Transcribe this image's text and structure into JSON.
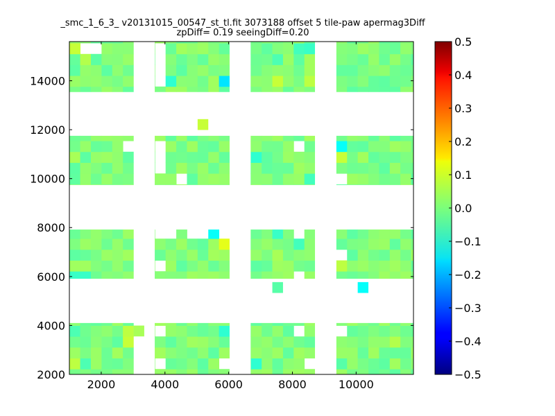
{
  "chart_data": {
    "type": "heatmap",
    "title_line1": "_smc_1_6_3_ v20131015_00547_st_tl.fit 3073188 offset 5 tile-paw apermag3Diff",
    "title_line2": "zpDiff= 0.19 seeingDiff=0.20",
    "xlabel": "",
    "ylabel": "",
    "xlim": [
      1000,
      11800
    ],
    "ylim": [
      2000,
      15600
    ],
    "x_ticks": [
      2000,
      4000,
      6000,
      8000,
      10000
    ],
    "x_tick_labels": [
      "2000",
      "4000",
      "6000",
      "8000",
      "10000"
    ],
    "y_ticks": [
      2000,
      4000,
      6000,
      8000,
      10000,
      12000,
      14000
    ],
    "y_tick_labels": [
      "2000",
      "4000",
      "6000",
      "8000",
      "10000",
      "12000",
      "14000"
    ],
    "colorbar": {
      "colormap": "jet",
      "range": [
        -0.5,
        0.5
      ],
      "ticks": [
        0.5,
        0.4,
        0.3,
        0.2,
        0.1,
        0.0,
        -0.1,
        -0.2,
        -0.3,
        -0.4,
        -0.5
      ],
      "tick_labels": [
        "0.5",
        "0.4",
        "0.3",
        "0.2",
        "0.1",
        "0.0",
        "−0.1",
        "−0.2",
        "−0.3",
        "−0.4",
        "−0.5"
      ]
    },
    "grid": false,
    "cell_size": [
      335,
      444
    ],
    "tiles": [
      {
        "x": [
          1000,
          3010
        ],
        "y": [
          2000,
          4100
        ]
      },
      {
        "x": [
          3680,
          6020
        ],
        "y": [
          2000,
          4100
        ]
      },
      {
        "x": [
          6690,
          8700
        ],
        "y": [
          2000,
          4100
        ]
      },
      {
        "x": [
          9380,
          11800
        ],
        "y": [
          2000,
          4100
        ]
      },
      {
        "x": [
          1000,
          3010
        ],
        "y": [
          5920,
          7920
        ]
      },
      {
        "x": [
          3680,
          6020
        ],
        "y": [
          5920,
          7920
        ]
      },
      {
        "x": [
          6690,
          8700
        ],
        "y": [
          5920,
          7920
        ]
      },
      {
        "x": [
          9380,
          11800
        ],
        "y": [
          5920,
          7920
        ]
      },
      {
        "x": [
          1000,
          3010
        ],
        "y": [
          9750,
          11750
        ]
      },
      {
        "x": [
          3680,
          6020
        ],
        "y": [
          9750,
          11750
        ]
      },
      {
        "x": [
          6690,
          8700
        ],
        "y": [
          9750,
          11750
        ]
      },
      {
        "x": [
          9380,
          11800
        ],
        "y": [
          9750,
          11750
        ]
      },
      {
        "x": [
          1000,
          3010
        ],
        "y": [
          13550,
          15600
        ]
      },
      {
        "x": [
          3680,
          6020
        ],
        "y": [
          13550,
          15600
        ]
      },
      {
        "x": [
          6690,
          8700
        ],
        "y": [
          13550,
          15600
        ]
      },
      {
        "x": [
          9380,
          11800
        ],
        "y": [
          13550,
          15600
        ]
      }
    ],
    "extra_cells": [
      {
        "x": 3180,
        "y": 3650,
        "value": 0.04
      },
      {
        "x": 5180,
        "y": 12000,
        "value": 0.07
      },
      {
        "x": 7680,
        "y": 5700,
        "value": -0.04
      },
      {
        "x": 10250,
        "y": 5700,
        "value": -0.12
      }
    ],
    "missing_cells": [
      {
        "x": 1340,
        "y": 15370
      },
      {
        "x": 1680,
        "y": 15370
      },
      {
        "x": 3850,
        "y": 15370
      },
      {
        "x": 3850,
        "y": 14930
      },
      {
        "x": 3850,
        "y": 14490
      },
      {
        "x": 3850,
        "y": 14050
      },
      {
        "x": 2680,
        "y": 11530
      },
      {
        "x": 3850,
        "y": 11530
      },
      {
        "x": 3850,
        "y": 11090
      },
      {
        "x": 3850,
        "y": 10650
      },
      {
        "x": 4520,
        "y": 9970
      },
      {
        "x": 8350,
        "y": 11530
      },
      {
        "x": 9550,
        "y": 10210
      },
      {
        "x": 3850,
        "y": 7700
      },
      {
        "x": 4200,
        "y": 7700
      },
      {
        "x": 5850,
        "y": 7700
      },
      {
        "x": 4850,
        "y": 7700
      },
      {
        "x": 5200,
        "y": 7700
      },
      {
        "x": 8350,
        "y": 7700
      },
      {
        "x": 9550,
        "y": 6820
      },
      {
        "x": 3850,
        "y": 6380
      },
      {
        "x": 8350,
        "y": 6140
      },
      {
        "x": 3850,
        "y": 3650
      },
      {
        "x": 3850,
        "y": 2260
      },
      {
        "x": 5850,
        "y": 2260
      },
      {
        "x": 8350,
        "y": 3880
      },
      {
        "x": 8700,
        "y": 2260
      },
      {
        "x": 9550,
        "y": 3880
      }
    ],
    "special_cells": [
      {
        "x": 1180,
        "y": 15140,
        "value": 0.07
      },
      {
        "x": 1520,
        "y": 14930,
        "value": 0.05
      },
      {
        "x": 4200,
        "y": 13800,
        "value": -0.08
      },
      {
        "x": 5850,
        "y": 13800,
        "value": -0.15
      },
      {
        "x": 7680,
        "y": 13800,
        "value": 0.07
      },
      {
        "x": 8680,
        "y": 13800,
        "value": 0.06
      },
      {
        "x": 8060,
        "y": 15140,
        "value": -0.06
      },
      {
        "x": 7380,
        "y": 14930,
        "value": -0.05
      },
      {
        "x": 8700,
        "y": 15140,
        "value": -0.07
      },
      {
        "x": 6850,
        "y": 11090,
        "value": -0.08
      },
      {
        "x": 9680,
        "y": 11530,
        "value": -0.12
      },
      {
        "x": 9680,
        "y": 10900,
        "value": 0.07
      },
      {
        "x": 8700,
        "y": 9970,
        "value": -0.06
      },
      {
        "x": 1180,
        "y": 10900,
        "value": 0.04
      },
      {
        "x": 4520,
        "y": 9970,
        "value": 0.06
      },
      {
        "x": 4350,
        "y": 7700,
        "value": 0.07
      },
      {
        "x": 5680,
        "y": 7700,
        "value": -0.12
      },
      {
        "x": 5850,
        "y": 7260,
        "value": 0.1
      },
      {
        "x": 7380,
        "y": 7700,
        "value": -0.07
      },
      {
        "x": 8350,
        "y": 7470,
        "value": -0.06
      },
      {
        "x": 7680,
        "y": 6820,
        "value": 0.04
      },
      {
        "x": 9550,
        "y": 6580,
        "value": 0.06
      },
      {
        "x": 1180,
        "y": 6140,
        "value": -0.07
      },
      {
        "x": 1520,
        "y": 6140,
        "value": -0.07
      },
      {
        "x": 1180,
        "y": 3650,
        "value": -0.05
      },
      {
        "x": 2680,
        "y": 3880,
        "value": 0.06
      },
      {
        "x": 2680,
        "y": 3200,
        "value": 0.07
      },
      {
        "x": 5850,
        "y": 3650,
        "value": -0.08
      },
      {
        "x": 1520,
        "y": 2480,
        "value": -0.05
      },
      {
        "x": 1180,
        "y": 2260,
        "value": 0.06
      },
      {
        "x": 6850,
        "y": 2260,
        "value": -0.08
      },
      {
        "x": 9550,
        "y": 3650,
        "value": -0.06
      },
      {
        "x": 9550,
        "y": 2480,
        "value": -0.04
      },
      {
        "x": 11320,
        "y": 3200,
        "value": 0.05
      }
    ]
  }
}
